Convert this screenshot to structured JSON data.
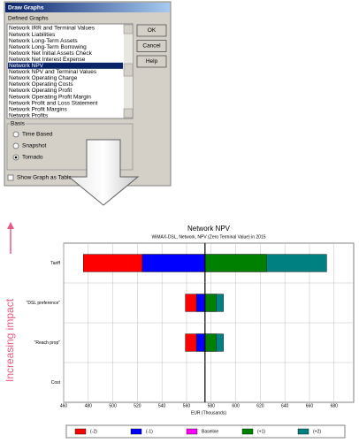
{
  "dialog": {
    "title": "Draw Graphs",
    "list_label": "Defined Graphs",
    "items": [
      "Network IRR and Terminal Values",
      "Network Liabilities",
      "Network Long-Term Assets",
      "Network Long-Term Borrowing",
      "Network Net Initial Assets Check",
      "Network Net Interest Expense",
      "Network NPV",
      "Network NPV and Terminal Values",
      "Network Operating Charge",
      "Network Operating Costs",
      "Network Operating Profit",
      "Network Operating Profit Margin",
      "Network Profit and Loss Statement",
      "Network Profit Margins",
      "Network Profits"
    ],
    "selected_index": 6,
    "buttons": [
      "OK",
      "Cancel",
      "Help"
    ],
    "basis_label": "Basis",
    "basis_options": [
      "Time Based",
      "Snapshot",
      "Tornado"
    ],
    "basis_selected": 2,
    "checkbox_label": "Show Graph as Table"
  },
  "chart_data": {
    "type": "tornado",
    "title": "Network NPV",
    "subtitle": "WiMAX-DSL, Network, NPV (Zero Terminal Value) in 2015",
    "x_label": "EUR (Thousands)",
    "side_annotation": "Increasing impact",
    "categories": [
      "Tariff",
      "\"DSL preference\"",
      "\"Reach prop\"",
      "Cost"
    ],
    "series": [
      {
        "name": "(-2)",
        "color": "#ff0000",
        "values": [
          476,
          559,
          559,
          575
        ]
      },
      {
        "name": "(-1)",
        "color": "#0000ff",
        "values": [
          524,
          568,
          568,
          575
        ]
      },
      {
        "name": "Baseline",
        "color": "#ff00ff",
        "values": [
          575,
          575,
          575,
          575
        ]
      },
      {
        "name": "(+1)",
        "color": "#008000",
        "values": [
          625,
          584,
          584,
          575
        ]
      },
      {
        "name": "(+2)",
        "color": "#008080",
        "values": [
          674,
          590,
          590,
          575
        ]
      }
    ],
    "xlim": [
      460,
      696
    ],
    "xticks": [
      460,
      480,
      500,
      520,
      540,
      560,
      580,
      600,
      620,
      640,
      660,
      680
    ],
    "grid": true
  }
}
